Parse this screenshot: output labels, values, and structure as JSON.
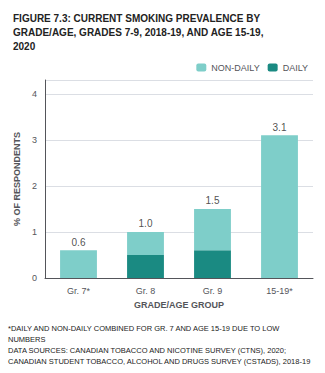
{
  "chart_data": {
    "type": "bar",
    "title": "FIGURE 7.3: CURRENT SMOKING PREVALENCE BY\nGRADE/AGE, GRADES 7-9, 2018-19, AND AGE 15-19,\n2020",
    "x_label": "GRADE/AGE GROUP",
    "y_label": "% OF RESPONDENTS",
    "categories": [
      "Gr. 7*",
      "Gr. 8",
      "Gr. 9",
      "15-19*"
    ],
    "series": [
      {
        "name": "DAILY",
        "color": "#1a8a82",
        "colors": [
          "#7ecec9",
          "#1a8a82",
          "#1a8a82",
          "#7ecec9"
        ],
        "values": [
          0.6,
          0.5,
          0.6,
          3.1
        ]
      },
      {
        "name": "NON-DAILY",
        "color": "#7ecec9",
        "values": [
          0.0,
          0.5,
          0.9,
          0.0
        ]
      }
    ],
    "stacked": true,
    "totals": [
      0.6,
      1.0,
      1.5,
      3.1
    ],
    "total_labels": [
      "0.6",
      "1.0",
      "1.5",
      "3.1"
    ],
    "ylim": [
      0,
      4.3
    ],
    "yticks": [
      0,
      1,
      2,
      3,
      4
    ],
    "grid": true,
    "legend": "upper right",
    "annotations": [
      "*DAILY AND NON-DAILY COMBINED FOR GR. 7 AND AGE 15-19 DUE TO LOW\nNUMBERS\nDATA SOURCES: CANADIAN TOBACCO AND NICOTINE SURVEY (CTNS), 2020;\nCANADIAN STUDENT TOBACCO, ALCOHOL AND DRUGS SURVEY (CSTADS), 2018-19"
    ]
  }
}
